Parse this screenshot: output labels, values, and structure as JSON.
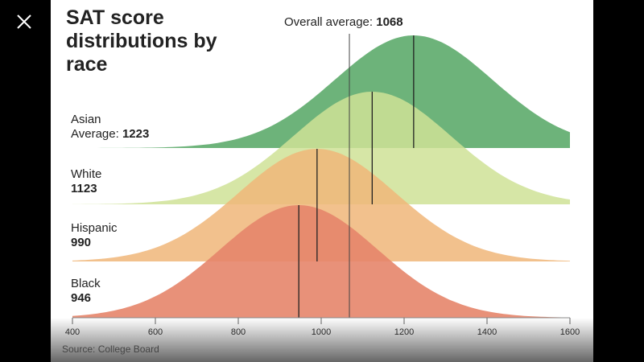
{
  "close_icon": "close-icon",
  "chart_data": {
    "type": "area",
    "title": "SAT score distributions by race",
    "overall_average_label": "Overall average:",
    "overall_average": 1068,
    "xlim": [
      400,
      1600
    ],
    "xticks": [
      "400",
      "600",
      "800",
      "1000",
      "1200",
      "1400",
      "1600"
    ],
    "source": "Source: College Board",
    "series": [
      {
        "name": "Asian",
        "avg_label": "Average:",
        "mean": 1223,
        "color": "#6db37a"
      },
      {
        "name": "White",
        "avg_label": "",
        "mean": 1123,
        "color": "#cfe297"
      },
      {
        "name": "Hispanic",
        "avg_label": "",
        "mean": 990,
        "color": "#f0b679"
      },
      {
        "name": "Black",
        "avg_label": "",
        "mean": 946,
        "color": "#e6856a"
      }
    ]
  }
}
